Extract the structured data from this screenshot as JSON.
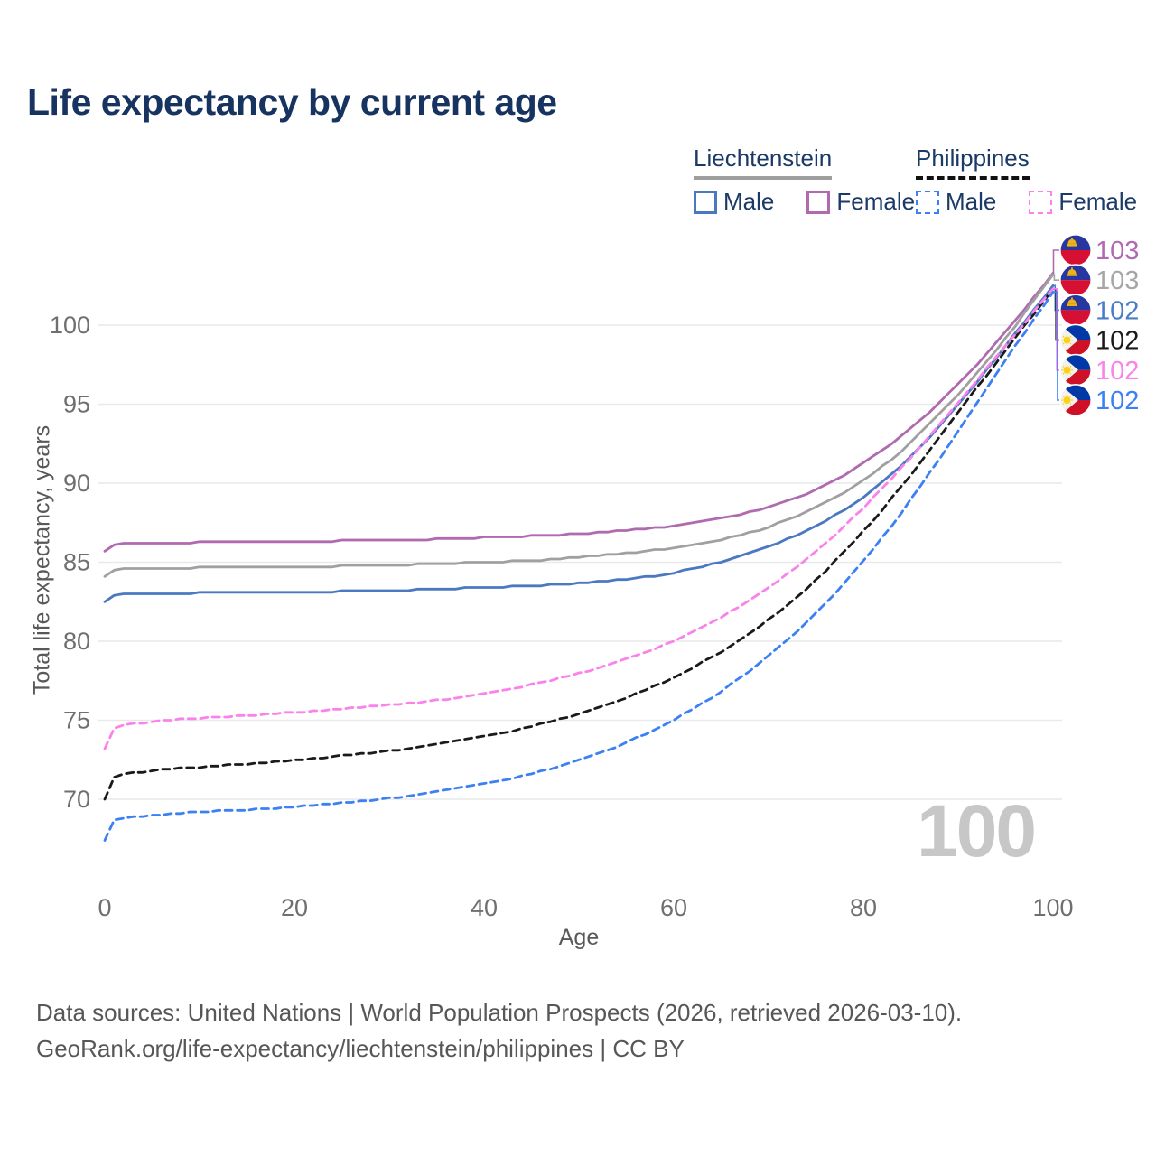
{
  "title": "Life expectancy by current age",
  "legend": {
    "groups": [
      {
        "label": "Liechtenstein",
        "line_style": "solid",
        "underline_color": "#9e9e9e",
        "items": [
          {
            "label": "Male",
            "color": "#4a79c2"
          },
          {
            "label": "Female",
            "color": "#b06ab0"
          }
        ]
      },
      {
        "label": "Philippines",
        "line_style": "dashed",
        "underline_color": "#111111",
        "items": [
          {
            "label": "Male",
            "color": "#3b80f5"
          },
          {
            "label": "Female",
            "color": "#fa82ea"
          }
        ]
      }
    ]
  },
  "chart_data": {
    "type": "line",
    "title": "Life expectancy by current age",
    "xlabel": "Age",
    "ylabel": "Total life expectancy, years",
    "xticks": [
      0,
      20,
      40,
      60,
      80,
      100
    ],
    "yticks": [
      70,
      75,
      80,
      85,
      90,
      95,
      100
    ],
    "xlim": [
      0,
      100
    ],
    "ylim": [
      66.5,
      104
    ],
    "grid": "horizontal",
    "legend_position": "top-right",
    "watermark": "100",
    "x": [
      0,
      1,
      2,
      3,
      5,
      10,
      15,
      20,
      25,
      30,
      35,
      40,
      45,
      50,
      55,
      60,
      65,
      70,
      75,
      80,
      85,
      90,
      95,
      100
    ],
    "series": [
      {
        "name": "Liechtenstein Female",
        "country": "Liechtenstein",
        "sex": "Female",
        "color": "#b06ab0",
        "dash": "solid",
        "values": [
          85.7,
          86.1,
          86.15,
          86.2,
          86.2,
          86.25,
          86.3,
          86.3,
          86.35,
          86.4,
          86.45,
          86.55,
          86.65,
          86.8,
          87.0,
          87.3,
          87.75,
          88.45,
          89.55,
          91.2,
          93.4,
          96.2,
          99.5,
          103.3
        ]
      },
      {
        "name": "Liechtenstein Total",
        "country": "Liechtenstein",
        "sex": "Both",
        "color": "#a0a0a0",
        "dash": "solid",
        "values": [
          84.1,
          84.5,
          84.55,
          84.6,
          84.6,
          84.65,
          84.7,
          84.7,
          84.75,
          84.8,
          84.9,
          85.0,
          85.1,
          85.3,
          85.55,
          85.9,
          86.4,
          87.2,
          88.4,
          90.1,
          92.5,
          95.6,
          99.1,
          103.2
        ]
      },
      {
        "name": "Liechtenstein Male",
        "country": "Liechtenstein",
        "sex": "Male",
        "color": "#4a79c2",
        "dash": "solid",
        "values": [
          82.5,
          82.9,
          82.95,
          83.0,
          83.0,
          83.05,
          83.1,
          83.1,
          83.15,
          83.2,
          83.3,
          83.4,
          83.5,
          83.65,
          83.9,
          84.3,
          85.0,
          85.95,
          87.25,
          89.0,
          91.6,
          94.9,
          98.7,
          102.5
        ]
      },
      {
        "name": "Philippines Total",
        "country": "Philippines",
        "sex": "Both",
        "color": "#1a1a1a",
        "dash": "dashed",
        "values": [
          70.0,
          71.4,
          71.55,
          71.65,
          71.85,
          72.05,
          72.25,
          72.45,
          72.75,
          73.05,
          73.45,
          73.95,
          74.6,
          75.4,
          76.4,
          77.7,
          79.3,
          81.3,
          83.8,
          86.9,
          90.5,
          94.5,
          98.4,
          102.3
        ]
      },
      {
        "name": "Philippines Female",
        "country": "Philippines",
        "sex": "Female",
        "color": "#fa82ea",
        "dash": "dashed",
        "values": [
          73.2,
          74.5,
          74.65,
          74.75,
          74.95,
          75.15,
          75.3,
          75.5,
          75.7,
          75.95,
          76.25,
          76.65,
          77.25,
          77.95,
          78.85,
          80.0,
          81.5,
          83.35,
          85.6,
          88.4,
          91.6,
          95.1,
          98.7,
          102.3
        ]
      },
      {
        "name": "Philippines Male",
        "country": "Philippines",
        "sex": "Male",
        "color": "#3b80f5",
        "dash": "dashed",
        "values": [
          67.4,
          68.7,
          68.8,
          68.9,
          69.0,
          69.2,
          69.35,
          69.5,
          69.75,
          70.05,
          70.45,
          70.95,
          71.6,
          72.45,
          73.55,
          75.0,
          76.8,
          79.0,
          81.7,
          85.0,
          88.9,
          93.3,
          97.8,
          102.1
        ]
      }
    ]
  },
  "end_labels": [
    {
      "series": "Liechtenstein Female",
      "flag": "liechtenstein",
      "value": "103",
      "color": "#b06ab0"
    },
    {
      "series": "Liechtenstein Total",
      "flag": "liechtenstein",
      "value": "103",
      "color": "#a6a6a6"
    },
    {
      "series": "Liechtenstein Male",
      "flag": "liechtenstein",
      "value": "102",
      "color": "#4a7cc7"
    },
    {
      "series": "Philippines Total",
      "flag": "philippines",
      "value": "102",
      "color": "#1a1a1a"
    },
    {
      "series": "Philippines Female",
      "flag": "philippines",
      "value": "102",
      "color": "#fa82ea"
    },
    {
      "series": "Philippines Male",
      "flag": "philippines",
      "value": "102",
      "color": "#3b80f5"
    }
  ],
  "footer": {
    "line1": "Data sources: United Nations | World Population Prospects (2026, retrieved 2026-03-10).",
    "line2": "GeoRank.org/life-expectancy/liechtenstein/philippines | CC BY"
  }
}
